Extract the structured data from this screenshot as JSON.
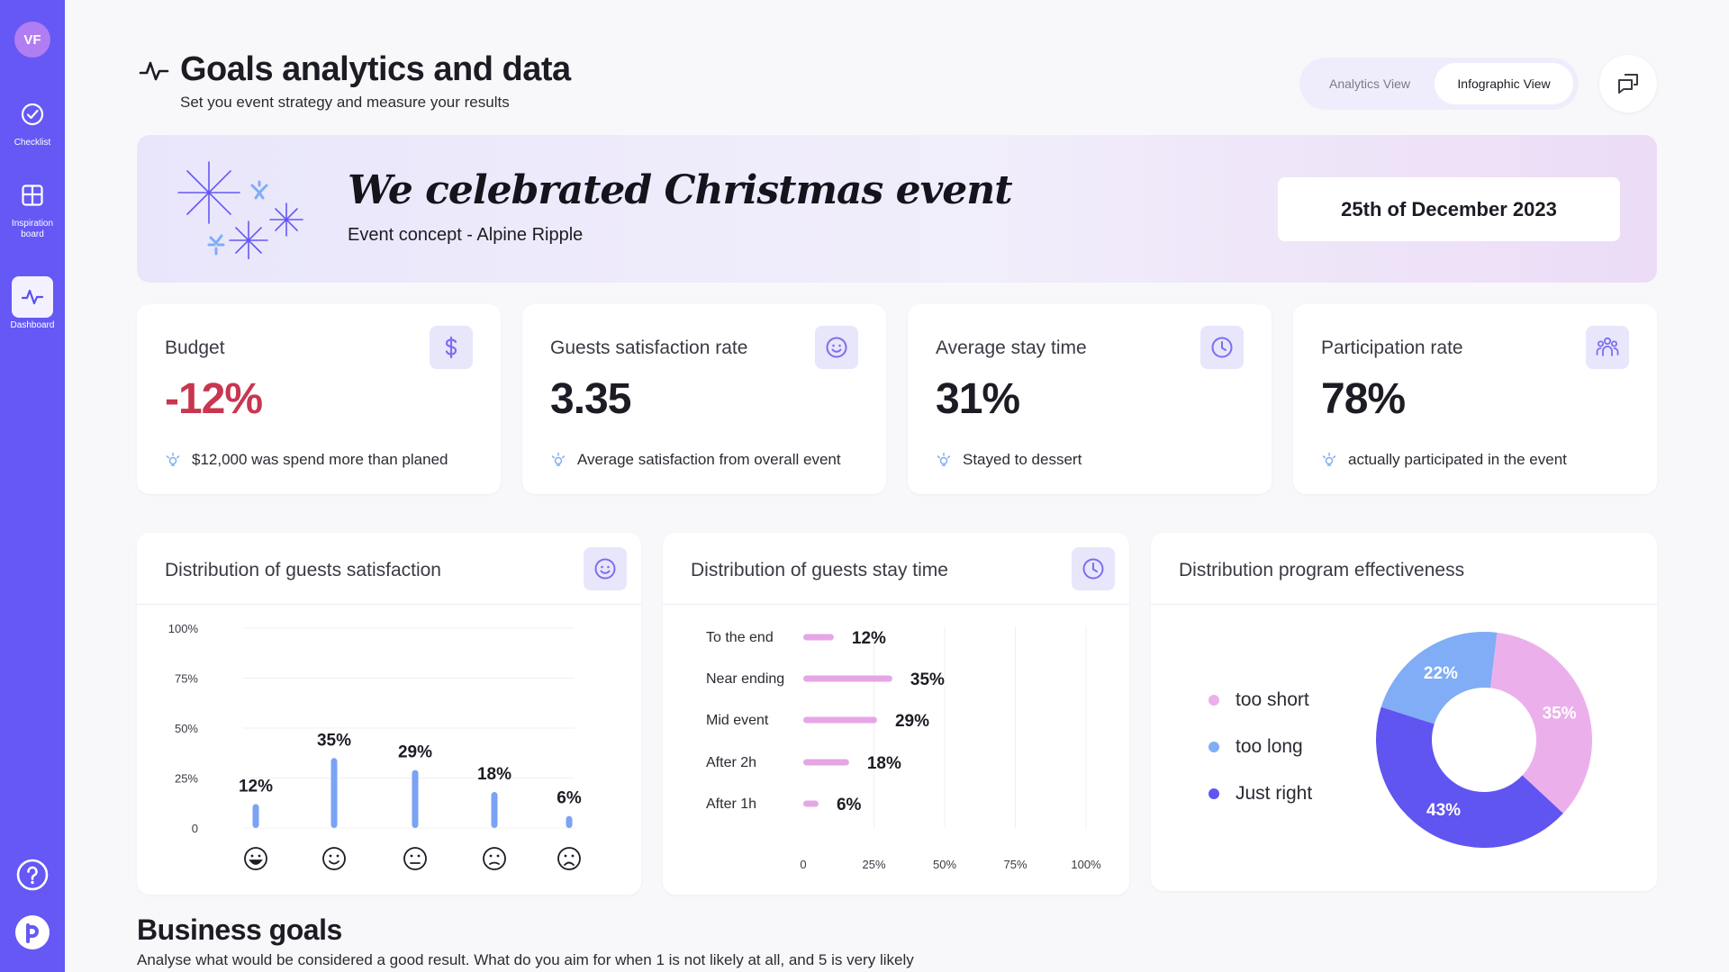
{
  "sidebar": {
    "avatar": "VF",
    "items": [
      {
        "label": "Checklist"
      },
      {
        "label": "Inspiration board"
      },
      {
        "label": "Dashboard"
      }
    ]
  },
  "header": {
    "title": "Goals analytics and data",
    "subtitle": "Set you event strategy and measure your results",
    "views": [
      "Analytics View",
      "Infographic View"
    ],
    "active_view": "Infographic View"
  },
  "banner": {
    "title": "We celebrated Christmas event",
    "concept": "Event concept  -  Alpine Ripple",
    "date": "25th of December  2023"
  },
  "stats": [
    {
      "title": "Budget",
      "value": "-12%",
      "note": "$12,000 was spend more than planed",
      "icon": "dollar-icon"
    },
    {
      "title": "Guests satisfaction rate",
      "value": "3.35",
      "note": "Average satisfaction from overall event",
      "icon": "smile-icon"
    },
    {
      "title": "Average stay time",
      "value": "31%",
      "note": "Stayed to dessert",
      "icon": "clock-icon"
    },
    {
      "title": "Participation rate",
      "value": "78%",
      "note": "actually participated in the event",
      "icon": "people-icon"
    }
  ],
  "charts": {
    "satisfaction": {
      "title": "Distribution of guests satisfaction"
    },
    "stay": {
      "title": "Distribution of guests stay time"
    },
    "program": {
      "title": "Distribution program effectiveness"
    }
  },
  "chart_data": [
    {
      "type": "bar",
      "categories": [
        "very-happy-face",
        "smiling-face",
        "neutral-face",
        "slightly-sad-face",
        "sad-face"
      ],
      "values": [
        12,
        35,
        29,
        18,
        6
      ],
      "value_labels": [
        "12%",
        "35%",
        "29%",
        "18%",
        "6%"
      ],
      "yticks": [
        "0",
        "25%",
        "50%",
        "75%",
        "100%"
      ],
      "ylim": [
        0,
        100
      ],
      "color": "#7aa3f5"
    },
    {
      "type": "bar",
      "orientation": "horizontal",
      "categories": [
        "To the end",
        "Near ending",
        "Mid event",
        "After 2h",
        "After 1h"
      ],
      "values": [
        12,
        35,
        29,
        18,
        6
      ],
      "value_labels": [
        "12%",
        "35%",
        "29%",
        "18%",
        "6%"
      ],
      "xticks": [
        "0",
        "25%",
        "50%",
        "75%",
        "100%"
      ],
      "xlim": [
        0,
        100
      ],
      "color": "#e6a6e6"
    },
    {
      "type": "pie",
      "donut": true,
      "series": [
        {
          "name": "too short",
          "value": 35,
          "label": "35%",
          "color": "#ebb0eb"
        },
        {
          "name": "Just right",
          "value": 43,
          "label": "43%",
          "color": "#6055f0"
        },
        {
          "name": "too long",
          "value": 22,
          "label": "22%",
          "color": "#80adf5"
        }
      ],
      "legend_order": [
        "too short",
        "too long",
        "Just right"
      ]
    }
  ],
  "business_goals": {
    "title": "Business goals",
    "subtitle": "Analyse what would be considered a good result. What do you aim for when 1 is not likely at all, and 5 is very likely"
  }
}
